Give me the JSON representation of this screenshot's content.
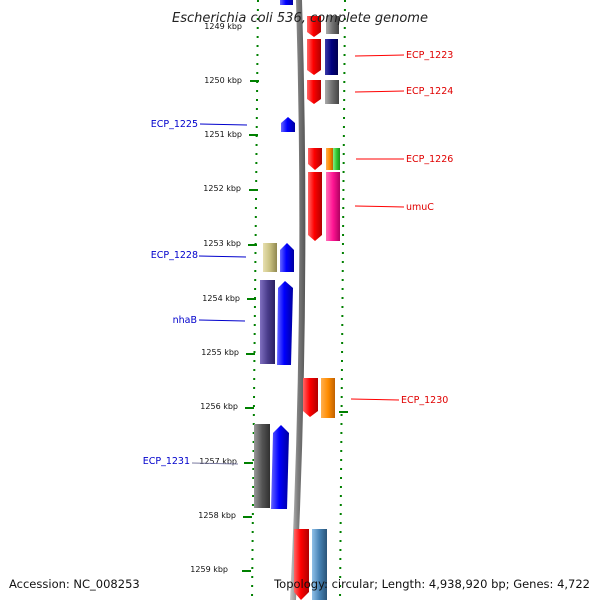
{
  "title": "Escherichia coli 536, complete genome",
  "accession": "Accession: NC_008253",
  "topology": "Topology: circular; Length: 4,938,920 bp; Genes: 4,722",
  "ticks": [
    "1249 kbp",
    "1250 kbp",
    "1251 kbp",
    "1252 kbp",
    "1253 kbp",
    "1254 kbp",
    "1255 kbp",
    "1256 kbp",
    "1257 kbp",
    "1258 kbp",
    "1259 kbp"
  ],
  "labels": {
    "ecp1223": "ECP_1223",
    "ecp1224": "ECP_1224",
    "ecp1225": "ECP_1225",
    "ecp1226": "ECP_1226",
    "umuC": "umuC",
    "ecp1228": "ECP_1228",
    "nhaB": "nhaB",
    "ecp1230": "ECP_1230",
    "ecp1231": "ECP_1231"
  },
  "colors": {
    "forward": "#ff0000",
    "reverse": "#0000ff",
    "backbone": "#808080",
    "ticks": "#008000",
    "navy": "#000080",
    "gray": "#707070",
    "orange": "#ff8c00",
    "green": "#33cc33",
    "magenta": "#ff1493",
    "khaki": "#c8c080",
    "purple": "#4b3d8c",
    "steel": "#4682b4",
    "dark_gray": "#555555"
  }
}
